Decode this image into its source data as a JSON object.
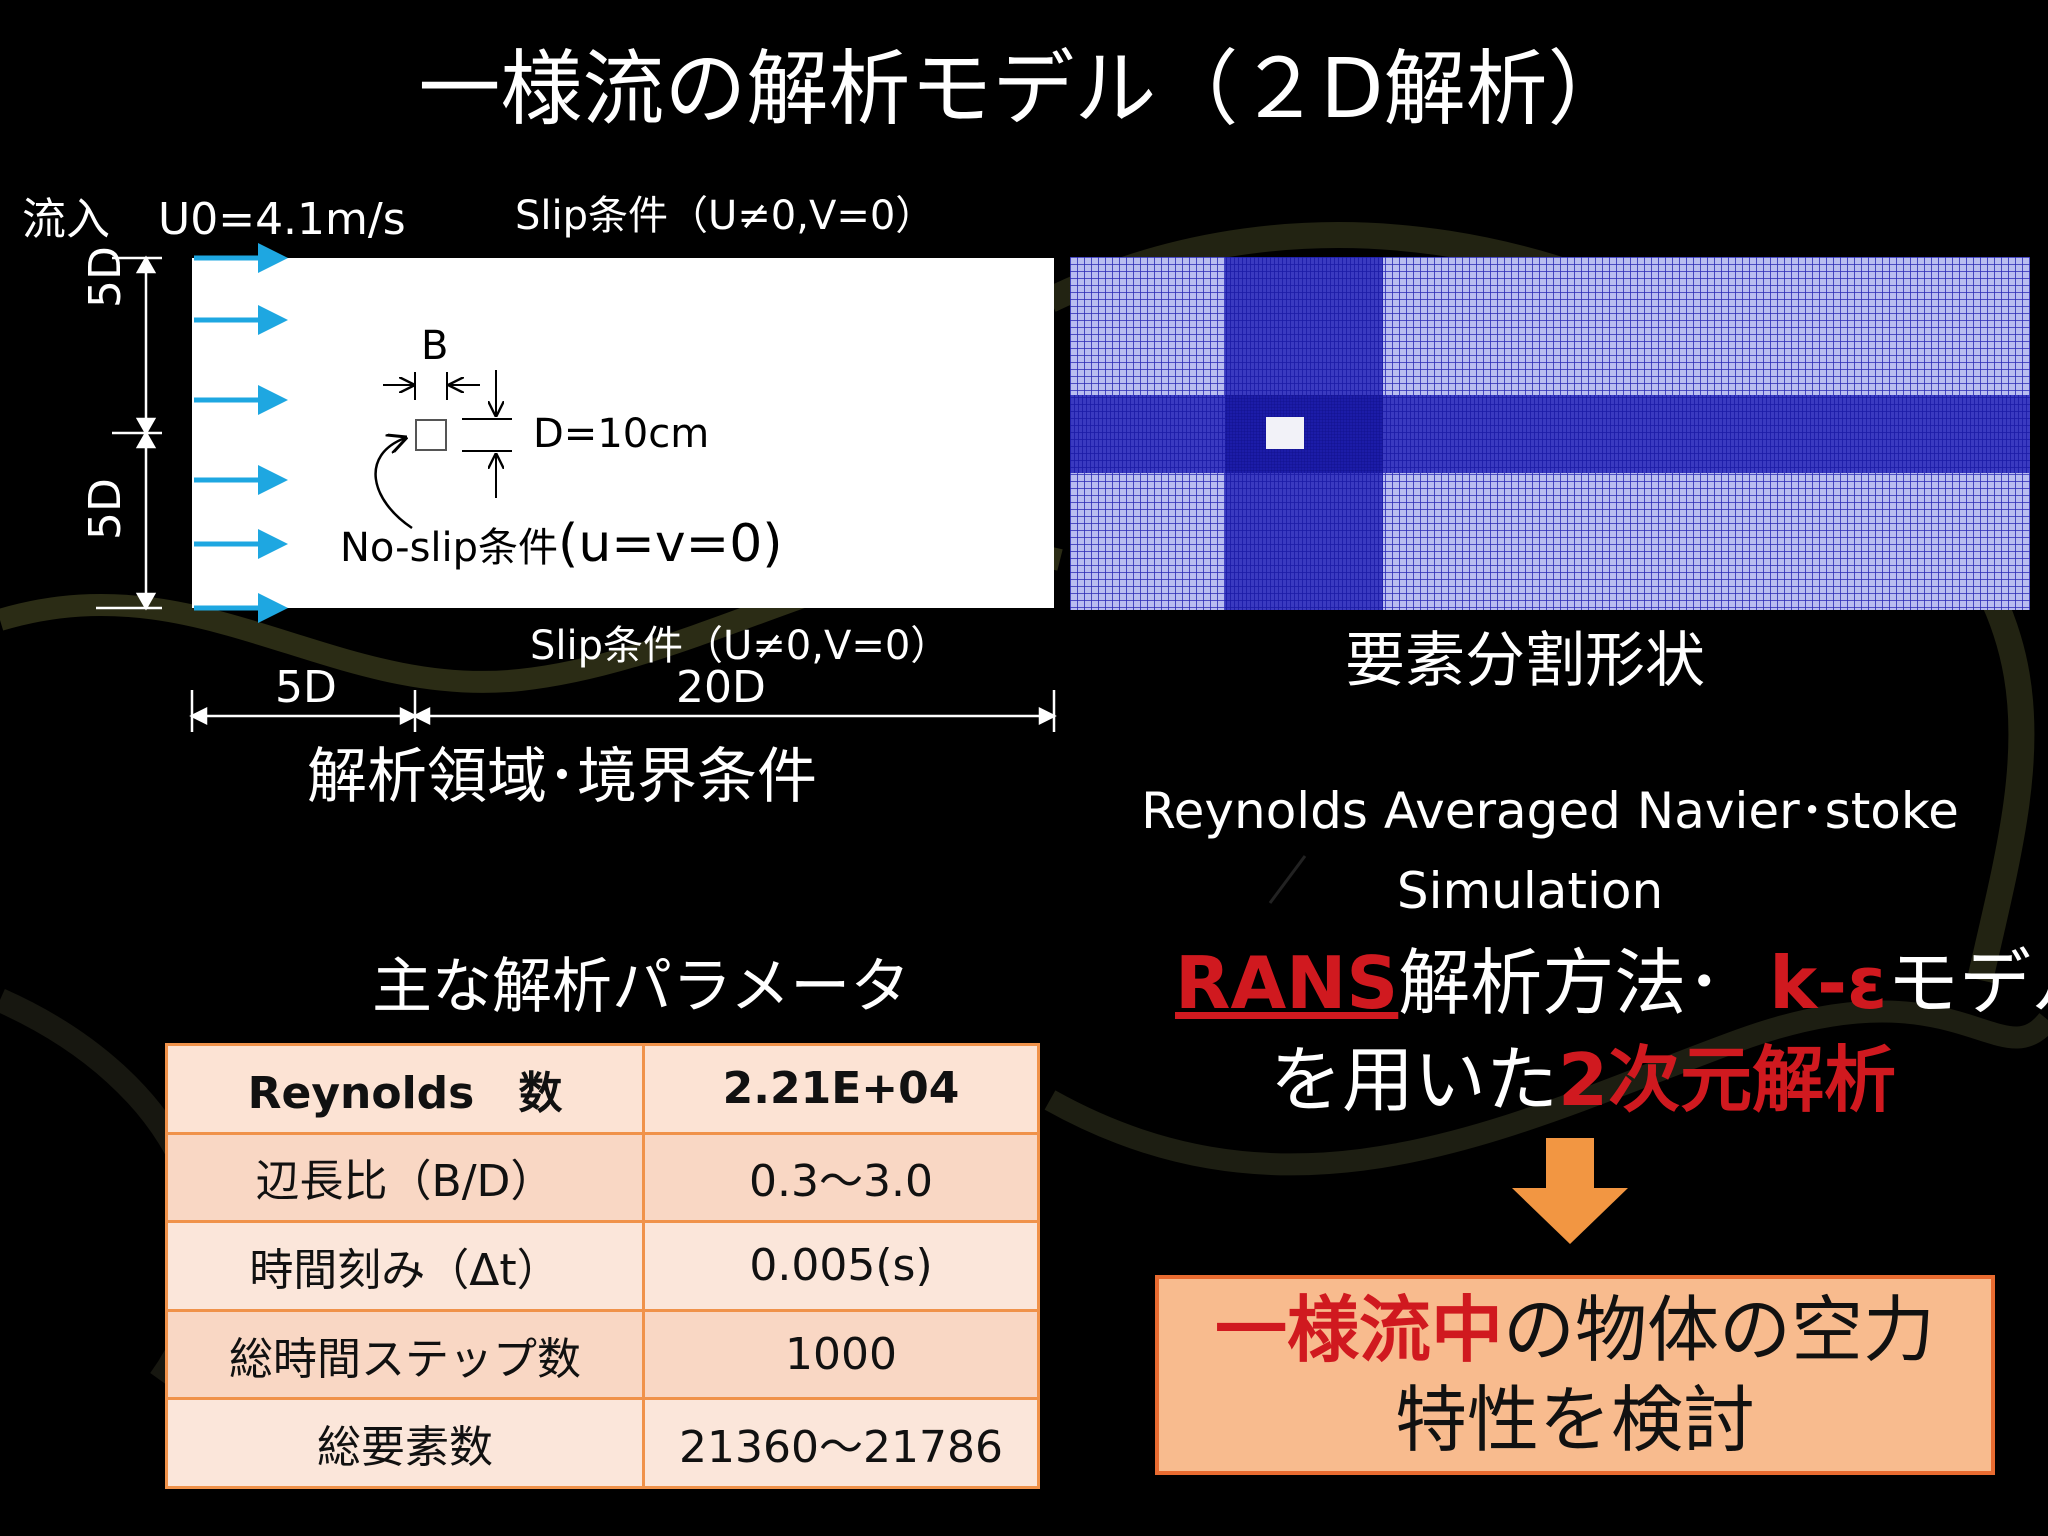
{
  "slide": {
    "title": "一様流の解析モデル（２D解析）"
  },
  "domain_figure": {
    "inflow_label": "流入",
    "inflow_velocity": "U0=4.1m/s",
    "slip_top": "Slip条件（U≠0,V=0）",
    "slip_bottom": "Slip条件（U≠0,V=0）",
    "height_upper": "5D",
    "height_lower": "5D",
    "body_width_label": "B",
    "body_depth_label": "D=10cm",
    "noslip_label": "No-slip条件",
    "noslip_condition": "(u=v=0)",
    "upstream_length": "5D",
    "downstream_length": "20D",
    "caption": "解析領域･境界条件"
  },
  "mesh_figure": {
    "caption": "要素分割形状"
  },
  "method": {
    "rans_line1": "Reynolds Averaged Navier･stoke",
    "rans_line2": "Simulation",
    "rans_abbrev": "RANS",
    "method_text": "解析方法･",
    "model_name": "k-ε",
    "model_suffix": "モデル",
    "use_prefix": "を用いた",
    "dimension": "2次元解析"
  },
  "params": {
    "heading": "主な解析パラメータ",
    "rows": [
      {
        "label": "Reynolds　数",
        "value": "2.21E+04"
      },
      {
        "label": "辺長比（B/D）",
        "value": "0.3～3.0"
      },
      {
        "label": "時間刻み（Δt）",
        "value": "0.005(s)"
      },
      {
        "label": "総時間ステップ数",
        "value": "1000"
      },
      {
        "label": "総要素数",
        "value": "21360～21786"
      }
    ]
  },
  "result": {
    "highlight": "一様流中",
    "rest_line1": "の物体の空力",
    "line2": "特性を検討"
  },
  "colors": {
    "arrow": "#1ea7e1",
    "mesh": "#1a1aa6",
    "accent_red": "#d0191f",
    "table_border": "#f0924a",
    "result_fill": "#f8bb8e",
    "result_down_arrow": "#f29642"
  }
}
